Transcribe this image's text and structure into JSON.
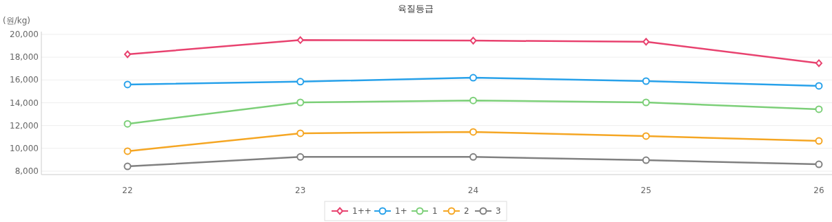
{
  "chart_data": {
    "type": "line",
    "title": "육질등급",
    "ylabel": "(원/kg)",
    "categories": [
      "22",
      "23",
      "24",
      "25",
      "26"
    ],
    "series": [
      {
        "name": "1++",
        "color": "#e8426f",
        "marker": "diamond",
        "values": [
          18250,
          19500,
          19450,
          19350,
          17470
        ]
      },
      {
        "name": "1+",
        "color": "#27a1ea",
        "marker": "circle",
        "values": [
          15600,
          15850,
          16200,
          15900,
          15480
        ]
      },
      {
        "name": "1",
        "color": "#7ccf78",
        "marker": "circle",
        "values": [
          12150,
          14030,
          14200,
          14030,
          13430
        ]
      },
      {
        "name": "2",
        "color": "#f5a623",
        "marker": "circle",
        "values": [
          9750,
          11320,
          11440,
          11080,
          10650
        ]
      },
      {
        "name": "3",
        "color": "#808080",
        "marker": "circle",
        "values": [
          8420,
          9250,
          9250,
          8960,
          8600
        ]
      }
    ],
    "ylim": [
      8000,
      20000
    ],
    "yticks": [
      {
        "value": 8000,
        "label": "8,000"
      },
      {
        "value": 10000,
        "label": "10,000"
      },
      {
        "value": 12000,
        "label": "12,000"
      },
      {
        "value": 14000,
        "label": "14,000"
      },
      {
        "value": 16000,
        "label": "16,000"
      },
      {
        "value": 18000,
        "label": "18,000"
      },
      {
        "value": 20000,
        "label": "20,000"
      }
    ],
    "grid": "y",
    "legend": "bottom",
    "line_style": "solid"
  }
}
